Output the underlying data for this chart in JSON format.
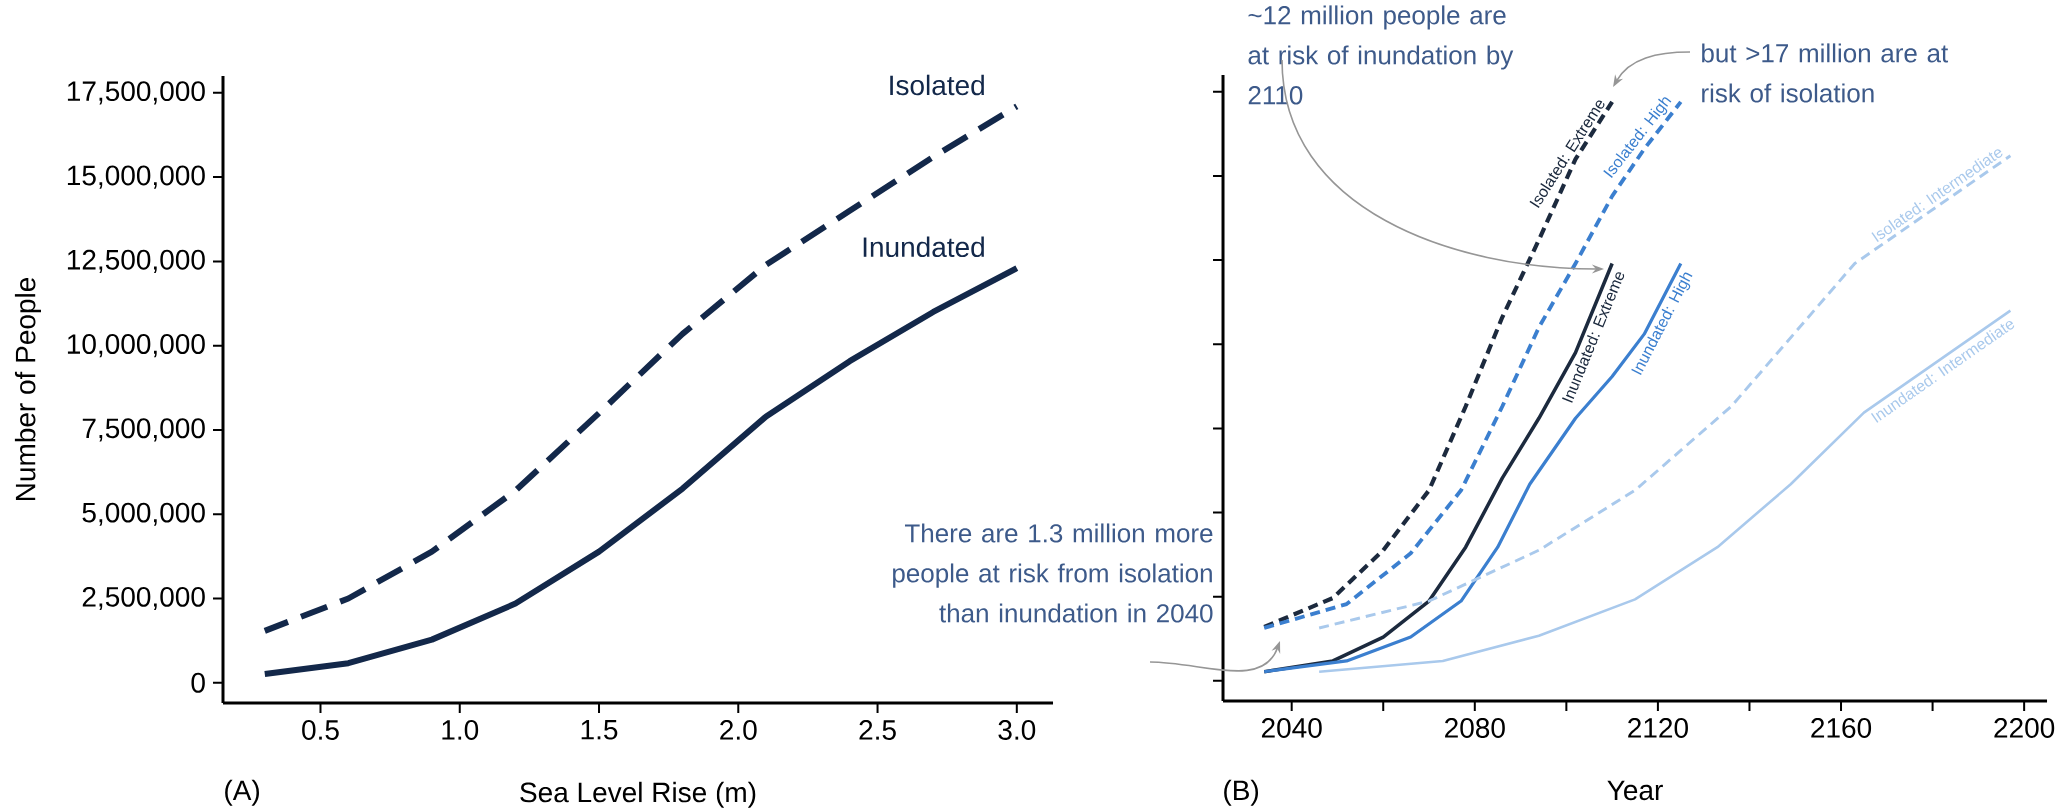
{
  "chart_data": [
    {
      "type": "line",
      "xlabel": "Sea Level Rise (m)",
      "ylabel": "Number of People",
      "x": [
        0.3,
        0.6,
        0.9,
        1.2,
        1.5,
        1.8,
        2.1,
        2.4,
        2.7,
        3.0
      ],
      "series": [
        {
          "name": "Isolated",
          "color": "#13284a",
          "line_style": "dashed",
          "values": [
            1540000,
            2500000,
            3890000,
            5700000,
            8000000,
            10350000,
            12400000,
            14000000,
            15600000,
            17100000
          ]
        },
        {
          "name": "Inundated",
          "color": "#13284a",
          "line_style": "solid",
          "values": [
            260000,
            580000,
            1280000,
            2350000,
            3890000,
            5760000,
            7900000,
            9540000,
            11000000,
            12300000
          ]
        }
      ],
      "xlim": [
        0.15,
        3.13
      ],
      "ylim": [
        -600000,
        18000000
      ],
      "xticks": [
        0.5,
        {
          "value": 1,
          "label": "1.0"
        },
        1.5,
        {
          "value": 2,
          "label": "2.0"
        },
        2.5,
        {
          "value": 3,
          "label": "3.0"
        }
      ],
      "yticks": [
        0,
        {
          "value": 2500000,
          "label": "2,500,000"
        },
        {
          "value": 5000000,
          "label": "5,000,000"
        },
        {
          "value": 7500000,
          "label": "7,500,000"
        },
        {
          "value": 10000000,
          "label": "10,000,000"
        },
        {
          "value": 12500000,
          "label": "12,500,000"
        },
        {
          "value": 15000000,
          "label": "15,000,000"
        },
        {
          "value": 17500000,
          "label": "17,500,000"
        }
      ],
      "annotations": [
        "(A)"
      ]
    },
    {
      "type": "line",
      "xlabel": "Year",
      "series": [
        {
          "name": "Isolated: Extreme",
          "color": "#1c2a3e",
          "line_style": "dashed",
          "x": [
            2034,
            2049,
            2060,
            2070,
            2078,
            2086,
            2094,
            2102,
            2110
          ],
          "values": [
            1600000,
            2460000,
            3880000,
            5660000,
            8150000,
            10800000,
            13100000,
            15500000,
            17200000
          ]
        },
        {
          "name": "Isolated: High",
          "color": "#3b7fcf",
          "line_style": "dashed",
          "x": [
            2034,
            2052,
            2066,
            2077,
            2086,
            2094,
            2102,
            2110,
            2117,
            2125
          ],
          "values": [
            1570000,
            2280000,
            3790000,
            5660000,
            8150000,
            10500000,
            12400000,
            14400000,
            15800000,
            17200000
          ]
        },
        {
          "name": "Inundated: Extreme",
          "color": "#1c2a3e",
          "line_style": "solid",
          "x": [
            2034,
            2049,
            2060,
            2070,
            2078,
            2086,
            2094,
            2102,
            2110
          ],
          "values": [
            270000,
            590000,
            1300000,
            2370000,
            3970000,
            6020000,
            7800000,
            9750000,
            12400000
          ]
        },
        {
          "name": "Inundated: High",
          "color": "#3b7fcf",
          "line_style": "solid",
          "x": [
            2034,
            2052,
            2066,
            2077,
            2085,
            2092,
            2102,
            2110,
            2117,
            2125
          ],
          "values": [
            270000,
            590000,
            1300000,
            2370000,
            3970000,
            5840000,
            7800000,
            9040000,
            10300000,
            12400000
          ]
        },
        {
          "name": "Isolated: Intermediate",
          "color": "#a9c9ec",
          "line_style": "dashed",
          "x": [
            2046,
            2070,
            2094,
            2115,
            2136,
            2163,
            2197
          ],
          "values": [
            1570000,
            2370000,
            3880000,
            5660000,
            8150000,
            12400000,
            15600000
          ]
        },
        {
          "name": "Inundated: Intermediate",
          "color": "#a9c9ec",
          "line_style": "solid",
          "x": [
            2046,
            2073,
            2094,
            2115,
            2133,
            2149,
            2165,
            2197
          ],
          "values": [
            270000,
            590000,
            1340000,
            2420000,
            3970000,
            5840000,
            7970000,
            11000000
          ]
        }
      ],
      "xlim": [
        2025,
        2205
      ],
      "ylim": [
        -600000,
        18000000
      ],
      "xticks": [
        2040,
        {
          "value": 2060,
          "label": null
        },
        2080,
        {
          "value": 2100,
          "label": null
        },
        2120,
        {
          "value": 2140,
          "label": null
        },
        2160,
        {
          "value": 2180,
          "label": null
        },
        2200
      ],
      "yticks": [
        0,
        2500000,
        5000000,
        7500000,
        10000000,
        12500000,
        15000000,
        17500000
      ],
      "tick_labels": "x",
      "annotations": [
        "(B)",
        "There are 1.3 million more people at risk from isolation than inundation in 2040",
        "~12 million people are at risk of inundation by 2110",
        "but >17 million are at risk of isolation"
      ]
    }
  ]
}
